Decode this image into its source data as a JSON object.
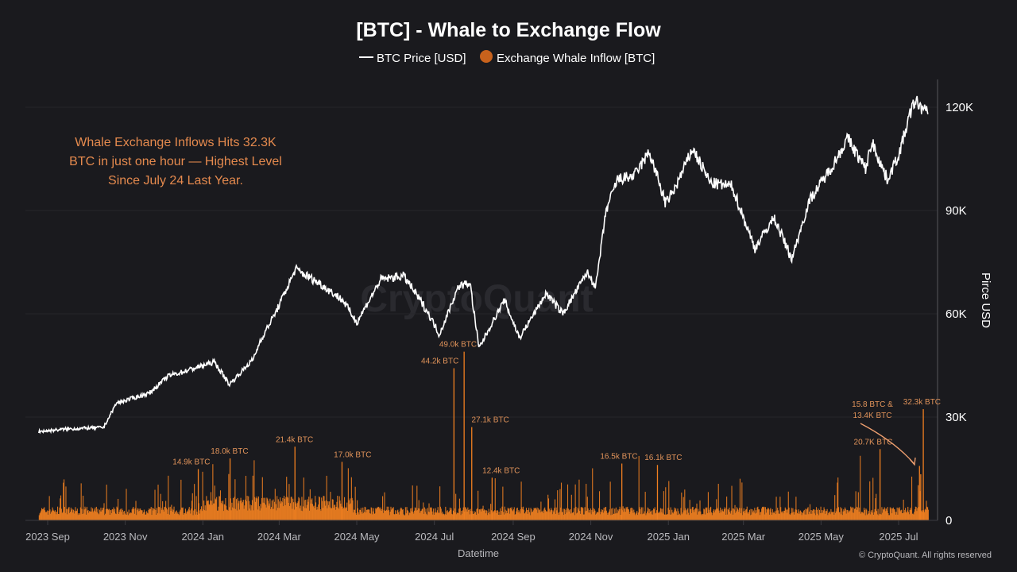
{
  "chart_data": {
    "type": "line+bar",
    "title": "[BTC] - Whale to Exchange Flow",
    "legend": {
      "placement": "top-center",
      "entries": [
        {
          "name": "BTC Price [USD]",
          "marker": "line",
          "color": "#ffffff"
        },
        {
          "name": "Exchange Whale Inflow [BTC]",
          "marker": "circle",
          "color": "#c8621c"
        }
      ]
    },
    "annotation": [
      "Whale Exchange Inflows Hits 32.3K",
      "BTC in just one hour — Highest Level",
      "Since July 24 Last Year."
    ],
    "xlabel": "Datetime",
    "ylabel": "Pirce USD",
    "x_ticks": [
      "2023 Sep",
      "2023 Nov",
      "2024 Jan",
      "2024 Mar",
      "2024 May",
      "2024 Jul",
      "2024 Sep",
      "2024 Nov",
      "2025 Jan",
      "2025 Mar",
      "2025 May",
      "2025 Jul"
    ],
    "x_tick_dates": [
      "2023-09-01",
      "2023-11-01",
      "2024-01-01",
      "2024-03-01",
      "2024-05-01",
      "2024-07-01",
      "2024-09-01",
      "2024-11-01",
      "2025-01-01",
      "2025-03-01",
      "2025-05-01",
      "2025-07-01"
    ],
    "y_ticks": [
      "0",
      "30K",
      "60K",
      "90K",
      "120K"
    ],
    "y_tick_values": [
      0,
      30000,
      60000,
      90000,
      120000
    ],
    "ylim": [
      0,
      128000
    ],
    "grid": true,
    "price_series": {
      "name": "BTC Price [USD]",
      "color": "#ffffff",
      "points": [
        [
          "2023-08-25",
          25800
        ],
        [
          "2023-09-15",
          26500
        ],
        [
          "2023-10-15",
          27000
        ],
        [
          "2023-10-25",
          34000
        ],
        [
          "2023-11-20",
          37000
        ],
        [
          "2023-12-05",
          42000
        ],
        [
          "2023-12-15",
          43000
        ],
        [
          "2024-01-10",
          46000
        ],
        [
          "2024-01-22",
          39500
        ],
        [
          "2024-02-10",
          47000
        ],
        [
          "2024-02-15",
          52000
        ],
        [
          "2024-02-28",
          61000
        ],
        [
          "2024-03-14",
          73000
        ],
        [
          "2024-04-01",
          69000
        ],
        [
          "2024-04-20",
          64000
        ],
        [
          "2024-05-01",
          57500
        ],
        [
          "2024-05-20",
          70000
        ],
        [
          "2024-06-07",
          71000
        ],
        [
          "2024-06-25",
          61000
        ],
        [
          "2024-07-05",
          54000
        ],
        [
          "2024-07-20",
          68000
        ],
        [
          "2024-07-29",
          69000
        ],
        [
          "2024-08-05",
          50000
        ],
        [
          "2024-08-25",
          64000
        ],
        [
          "2024-09-06",
          53000
        ],
        [
          "2024-09-27",
          66000
        ],
        [
          "2024-10-10",
          60000
        ],
        [
          "2024-10-29",
          72000
        ],
        [
          "2024-11-05",
          68000
        ],
        [
          "2024-11-13",
          90000
        ],
        [
          "2024-11-22",
          99000
        ],
        [
          "2024-12-05",
          100000
        ],
        [
          "2024-12-17",
          107000
        ],
        [
          "2024-12-30",
          92000
        ],
        [
          "2025-01-07",
          97000
        ],
        [
          "2025-01-20",
          108000
        ],
        [
          "2025-02-03",
          98000
        ],
        [
          "2025-02-20",
          97000
        ],
        [
          "2025-03-03",
          86000
        ],
        [
          "2025-03-10",
          79000
        ],
        [
          "2025-03-25",
          88000
        ],
        [
          "2025-04-08",
          76000
        ],
        [
          "2025-04-22",
          93000
        ],
        [
          "2025-05-10",
          103000
        ],
        [
          "2025-05-22",
          111000
        ],
        [
          "2025-06-05",
          102000
        ],
        [
          "2025-06-10",
          110000
        ],
        [
          "2025-06-22",
          99000
        ],
        [
          "2025-07-01",
          106000
        ],
        [
          "2025-07-10",
          118000
        ],
        [
          "2025-07-14",
          122000
        ],
        [
          "2025-07-24",
          118000
        ]
      ]
    },
    "inflow_series": {
      "name": "Exchange Whale Inflow [BTC]",
      "color": "#f07f20",
      "range": [
        "2023-08-25",
        "2025-07-24"
      ],
      "labeled_spikes": [
        {
          "date": "2023-12-28",
          "value": 14900,
          "label": "14.9k BTC"
        },
        {
          "date": "2024-01-22",
          "value": 18000,
          "label": "18.0k BTC"
        },
        {
          "date": "2024-03-13",
          "value": 21400,
          "label": "21.4k BTC"
        },
        {
          "date": "2024-04-19",
          "value": 17000,
          "label": "17.0k BTC"
        },
        {
          "date": "2024-07-16",
          "value": 44200,
          "label": "44.2k BTC"
        },
        {
          "date": "2024-07-24",
          "value": 49000,
          "label": "49.0k BTC"
        },
        {
          "date": "2024-07-30",
          "value": 27100,
          "label": "27.1k BTC"
        },
        {
          "date": "2024-08-15",
          "value": 12400,
          "label": "12.4k BTC"
        },
        {
          "date": "2024-11-25",
          "value": 16500,
          "label": "16.5k BTC"
        },
        {
          "date": "2024-12-23",
          "value": 16100,
          "label": "16.1k BTC"
        },
        {
          "date": "2025-06-16",
          "value": 20700,
          "label": "20.7K BTC"
        },
        {
          "date": "2025-07-17",
          "value": 15800,
          "label": "15.8 BTC &"
        },
        {
          "date": "2025-07-18",
          "value": 13400,
          "label": "13.4K BTC"
        },
        {
          "date": "2025-07-20",
          "value": 32300,
          "label": "32.3k BTC"
        }
      ]
    },
    "watermark": "CryptoQuant",
    "copyright": "© CryptoQuant. All rights reserved"
  }
}
